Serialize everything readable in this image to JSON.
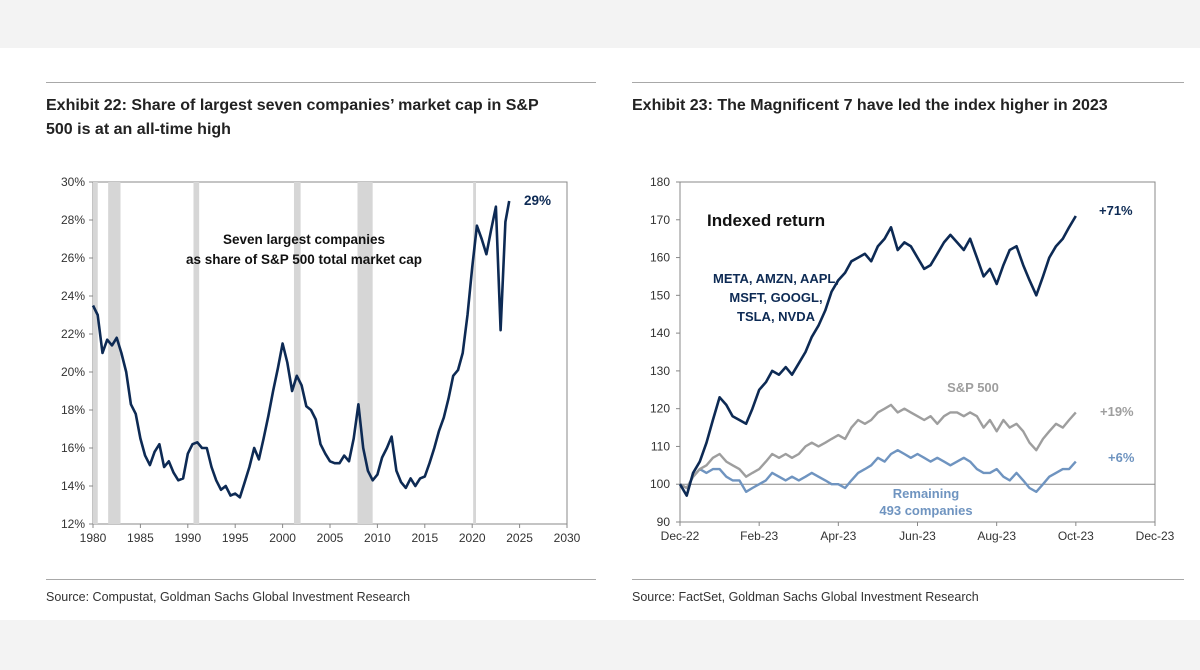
{
  "chart_data": [
    {
      "type": "line",
      "exhibit": "Exhibit 22:",
      "title": "Exhibit 22: Share of largest seven companies’ market cap in S&P 500 is at an all-time high",
      "title_line1": "Exhibit 22: Share of largest seven companies’ market cap in S&P",
      "title_line2": "500 is at an all-time high",
      "xlabel": "",
      "ylabel": "",
      "xlim": [
        1980,
        2030
      ],
      "ylim": [
        12,
        30
      ],
      "x_ticks": [
        "1980",
        "1985",
        "1990",
        "1995",
        "2000",
        "2005",
        "2010",
        "2015",
        "2020",
        "2025",
        "2030"
      ],
      "y_ticks": [
        "12%",
        "14%",
        "16%",
        "18%",
        "20%",
        "22%",
        "24%",
        "26%",
        "28%",
        "30%"
      ],
      "annotation_line1": "Seven largest companies",
      "annotation_line2": "as share of S&P 500 total market cap",
      "end_label": "29%",
      "recession_bands": [
        [
          1980.0,
          1980.5
        ],
        [
          1981.6,
          1982.9
        ],
        [
          1990.6,
          1991.2
        ],
        [
          2001.2,
          2001.9
        ],
        [
          2007.9,
          2009.5
        ],
        [
          2020.1,
          2020.4
        ]
      ],
      "series": [
        {
          "name": "Seven largest companies as share of S&P 500 total market cap",
          "color": "#0d2a54",
          "x": [
            1980.0,
            1980.5,
            1981.0,
            1981.5,
            1982.0,
            1982.5,
            1983.0,
            1983.5,
            1984.0,
            1984.5,
            1985.0,
            1985.5,
            1986.0,
            1986.5,
            1987.0,
            1987.5,
            1988.0,
            1988.5,
            1989.0,
            1989.5,
            1990.0,
            1990.5,
            1991.0,
            1991.5,
            1992.0,
            1992.5,
            1993.0,
            1993.5,
            1994.0,
            1994.5,
            1995.0,
            1995.5,
            1996.0,
            1996.5,
            1997.0,
            1997.5,
            1998.0,
            1998.5,
            1999.0,
            1999.5,
            2000.0,
            2000.5,
            2001.0,
            2001.5,
            2002.0,
            2002.5,
            2003.0,
            2003.5,
            2004.0,
            2004.5,
            2005.0,
            2005.5,
            2006.0,
            2006.5,
            2007.0,
            2007.5,
            2008.0,
            2008.5,
            2009.0,
            2009.5,
            2010.0,
            2010.5,
            2011.0,
            2011.5,
            2012.0,
            2012.5,
            2013.0,
            2013.5,
            2014.0,
            2014.5,
            2015.0,
            2015.5,
            2016.0,
            2016.5,
            2017.0,
            2017.5,
            2018.0,
            2018.5,
            2019.0,
            2019.5,
            2020.0,
            2020.5,
            2021.0,
            2021.5,
            2022.0,
            2022.5,
            2023.0,
            2023.5,
            2023.9
          ],
          "values": [
            23.5,
            23.0,
            21.0,
            21.7,
            21.4,
            21.8,
            21.0,
            20.0,
            18.3,
            17.8,
            16.5,
            15.6,
            15.1,
            15.8,
            16.2,
            15.0,
            15.3,
            14.7,
            14.3,
            14.4,
            15.7,
            16.2,
            16.3,
            16.0,
            16.0,
            15.0,
            14.3,
            13.8,
            14.0,
            13.5,
            13.6,
            13.4,
            14.2,
            15.0,
            16.0,
            15.4,
            16.5,
            17.7,
            19.0,
            20.2,
            21.5,
            20.5,
            19.0,
            19.8,
            19.3,
            18.2,
            18.0,
            17.5,
            16.2,
            15.7,
            15.3,
            15.2,
            15.2,
            15.6,
            15.3,
            16.5,
            18.3,
            16.0,
            14.8,
            14.3,
            14.6,
            15.5,
            16.0,
            16.6,
            14.8,
            14.2,
            13.9,
            14.4,
            14.0,
            14.4,
            14.5,
            15.2,
            16.0,
            16.9,
            17.6,
            18.6,
            19.8,
            20.1,
            21.0,
            23.0,
            25.5,
            27.7,
            27.0,
            26.2,
            27.5,
            28.7,
            22.2,
            27.9,
            29.0
          ]
        }
      ],
      "source": "Source: Compustat, Goldman Sachs Global Investment Research"
    },
    {
      "type": "line",
      "exhibit": "Exhibit 23:",
      "title": "Exhibit 23: The Magnificent 7 have led the index higher in 2023",
      "xlabel": "",
      "ylabel": "",
      "x_unit": "months since Dec-22",
      "xlim": [
        0,
        12
      ],
      "ylim": [
        90,
        180
      ],
      "x_ticks": [
        "Dec-22",
        "Feb-23",
        "Apr-23",
        "Jun-23",
        "Aug-23",
        "Oct-23",
        "Dec-23"
      ],
      "y_ticks": [
        "90",
        "100",
        "110",
        "120",
        "130",
        "140",
        "150",
        "160",
        "170",
        "180"
      ],
      "reference_line": 100,
      "annotation": "Indexed return",
      "series": [
        {
          "name": "META, AMZN, AAPL, MSFT, GOOGL, TSLA, NVDA",
          "label_lines": [
            "META, AMZN, AAPL,",
            "MSFT, GOOGL,",
            "TSLA, NVDA"
          ],
          "end_label": "+71%",
          "color": "#0d2a54",
          "x": [
            0.0,
            0.17,
            0.33,
            0.5,
            0.67,
            0.83,
            1.0,
            1.17,
            1.33,
            1.5,
            1.67,
            1.83,
            2.0,
            2.17,
            2.33,
            2.5,
            2.67,
            2.83,
            3.0,
            3.17,
            3.33,
            3.5,
            3.67,
            3.83,
            4.0,
            4.17,
            4.33,
            4.5,
            4.67,
            4.83,
            5.0,
            5.17,
            5.33,
            5.5,
            5.67,
            5.83,
            6.0,
            6.17,
            6.33,
            6.5,
            6.67,
            6.83,
            7.0,
            7.17,
            7.33,
            7.5,
            7.67,
            7.83,
            8.0,
            8.17,
            8.33,
            8.5,
            8.67,
            8.83,
            9.0,
            9.17,
            9.33,
            9.5,
            9.67,
            9.83,
            10.0
          ],
          "values": [
            100.0,
            97.0,
            103.0,
            106.0,
            111.0,
            117.0,
            123.0,
            121.0,
            118.0,
            117.0,
            116.0,
            120.0,
            125.0,
            127.0,
            130.0,
            129.0,
            131.0,
            129.0,
            132.0,
            135.0,
            139.0,
            142.0,
            146.0,
            151.0,
            154.0,
            156.0,
            159.0,
            160.0,
            161.0,
            159.0,
            163.0,
            165.0,
            168.0,
            162.0,
            164.0,
            163.0,
            160.0,
            157.0,
            158.0,
            161.0,
            164.0,
            166.0,
            164.0,
            162.0,
            165.0,
            160.0,
            155.0,
            157.0,
            153.0,
            158.0,
            162.0,
            163.0,
            158.0,
            154.0,
            150.0,
            155.0,
            160.0,
            163.0,
            165.0,
            168.0,
            171.0
          ]
        },
        {
          "name": "S&P 500",
          "end_label": "+19%",
          "color": "#9e9e9e",
          "x": [
            0.0,
            0.17,
            0.33,
            0.5,
            0.67,
            0.83,
            1.0,
            1.17,
            1.33,
            1.5,
            1.67,
            1.83,
            2.0,
            2.17,
            2.33,
            2.5,
            2.67,
            2.83,
            3.0,
            3.17,
            3.33,
            3.5,
            3.67,
            3.83,
            4.0,
            4.17,
            4.33,
            4.5,
            4.67,
            4.83,
            5.0,
            5.17,
            5.33,
            5.5,
            5.67,
            5.83,
            6.0,
            6.17,
            6.33,
            6.5,
            6.67,
            6.83,
            7.0,
            7.17,
            7.33,
            7.5,
            7.67,
            7.83,
            8.0,
            8.17,
            8.33,
            8.5,
            8.67,
            8.83,
            9.0,
            9.17,
            9.33,
            9.5,
            9.67,
            9.83,
            10.0
          ],
          "values": [
            100.0,
            99.0,
            102.0,
            104.0,
            105.0,
            107.0,
            108.0,
            106.0,
            105.0,
            104.0,
            102.0,
            103.0,
            104.0,
            106.0,
            108.0,
            107.0,
            108.0,
            107.0,
            108.0,
            110.0,
            111.0,
            110.0,
            111.0,
            112.0,
            113.0,
            112.0,
            115.0,
            117.0,
            116.0,
            117.0,
            119.0,
            120.0,
            121.0,
            119.0,
            120.0,
            119.0,
            118.0,
            117.0,
            118.0,
            116.0,
            118.0,
            119.0,
            119.0,
            118.0,
            119.0,
            118.0,
            115.0,
            117.0,
            114.0,
            117.0,
            115.0,
            116.0,
            114.0,
            111.0,
            109.0,
            112.0,
            114.0,
            116.0,
            115.0,
            117.0,
            119.0
          ]
        },
        {
          "name": "Remaining 493 companies",
          "label_lines": [
            "Remaining",
            "493 companies"
          ],
          "end_label": "+6%",
          "color": "#6f94c0",
          "x": [
            0.0,
            0.17,
            0.33,
            0.5,
            0.67,
            0.83,
            1.0,
            1.17,
            1.33,
            1.5,
            1.67,
            1.83,
            2.0,
            2.17,
            2.33,
            2.5,
            2.67,
            2.83,
            3.0,
            3.17,
            3.33,
            3.5,
            3.67,
            3.83,
            4.0,
            4.17,
            4.33,
            4.5,
            4.67,
            4.83,
            5.0,
            5.17,
            5.33,
            5.5,
            5.67,
            5.83,
            6.0,
            6.17,
            6.33,
            6.5,
            6.67,
            6.83,
            7.0,
            7.17,
            7.33,
            7.5,
            7.67,
            7.83,
            8.0,
            8.17,
            8.33,
            8.5,
            8.67,
            8.83,
            9.0,
            9.17,
            9.33,
            9.5,
            9.67,
            9.83,
            10.0
          ],
          "values": [
            100.0,
            99.0,
            102.0,
            104.0,
            103.0,
            104.0,
            104.0,
            102.0,
            101.0,
            101.0,
            98.0,
            99.0,
            100.0,
            101.0,
            103.0,
            102.0,
            101.0,
            102.0,
            101.0,
            102.0,
            103.0,
            102.0,
            101.0,
            100.0,
            100.0,
            99.0,
            101.0,
            103.0,
            104.0,
            105.0,
            107.0,
            106.0,
            108.0,
            109.0,
            108.0,
            107.0,
            108.0,
            107.0,
            106.0,
            107.0,
            106.0,
            105.0,
            106.0,
            107.0,
            106.0,
            104.0,
            103.0,
            103.0,
            104.0,
            102.0,
            101.0,
            103.0,
            101.0,
            99.0,
            98.0,
            100.0,
            102.0,
            103.0,
            104.0,
            104.0,
            106.0
          ]
        }
      ],
      "source": "Source: FactSet, Goldman Sachs Global Investment Research"
    }
  ]
}
